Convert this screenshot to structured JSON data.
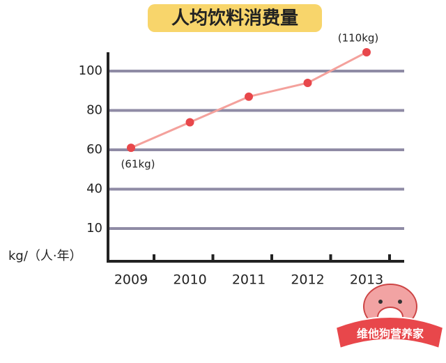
{
  "chart_data": {
    "type": "line",
    "title": "人均饮料消费量",
    "y_label": "kg/（人·年）",
    "categories": [
      "2009",
      "2010",
      "2011",
      "2012",
      "2013"
    ],
    "series": [
      {
        "name": null,
        "color": "#e8474b",
        "line_color": "#f4a19c",
        "values": [
          61,
          74,
          87,
          94,
          110
        ],
        "value_labels": [
          "(61kg)",
          null,
          null,
          null,
          "(110kg)"
        ]
      }
    ],
    "ylim": [
      -15,
      110
    ],
    "yticks": [
      10,
      40,
      60,
      80,
      100
    ],
    "grid": true,
    "grid_color": "#8f8ba5"
  },
  "watermark": "维他狗营养家"
}
